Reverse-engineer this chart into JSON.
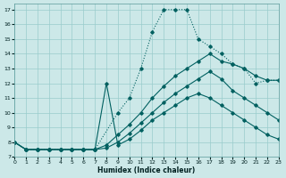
{
  "xlabel": "Humidex (Indice chaleur)",
  "background_color": "#cce8e8",
  "line_color": "#006060",
  "grid_color": "#99cccc",
  "xlim": [
    0,
    23
  ],
  "ylim": [
    7,
    17.4
  ],
  "yticks": [
    7,
    8,
    9,
    10,
    11,
    12,
    13,
    14,
    15,
    16,
    17
  ],
  "xticks": [
    0,
    1,
    2,
    3,
    4,
    5,
    6,
    7,
    8,
    9,
    10,
    11,
    12,
    13,
    14,
    15,
    16,
    17,
    18,
    19,
    20,
    21,
    22,
    23
  ],
  "c1x": [
    0,
    1,
    2,
    3,
    4,
    5,
    6,
    7,
    9,
    10,
    11,
    12,
    13,
    14,
    15,
    16,
    17,
    18,
    19,
    20,
    21,
    22,
    23
  ],
  "c1y": [
    8,
    7.5,
    7.5,
    7.5,
    7.5,
    7.5,
    7.5,
    7.5,
    10,
    11,
    13,
    15.5,
    17,
    17,
    17,
    15,
    14.5,
    14,
    13.3,
    13,
    12,
    12.2,
    12.2
  ],
  "c2x": [
    0,
    1,
    2,
    3,
    4,
    5,
    6,
    7,
    8,
    9,
    10,
    11,
    12,
    13,
    14,
    15,
    16,
    17,
    18,
    19,
    20,
    21,
    22,
    23
  ],
  "c2y": [
    8,
    7.5,
    7.5,
    7.5,
    7.5,
    7.5,
    7.5,
    7.5,
    7.8,
    8.5,
    9.2,
    10.0,
    11.0,
    11.8,
    12.5,
    13.0,
    13.5,
    14.0,
    13.5,
    13.3,
    13.0,
    12.5,
    12.2,
    12.2
  ],
  "c3x": [
    0,
    1,
    2,
    3,
    4,
    5,
    6,
    7,
    8,
    9,
    10,
    11,
    12,
    13,
    14,
    15,
    16,
    17,
    18,
    19,
    20,
    21,
    22,
    23
  ],
  "c3y": [
    8,
    7.5,
    7.5,
    7.5,
    7.5,
    7.5,
    7.5,
    7.5,
    7.6,
    8.0,
    8.6,
    9.3,
    10.0,
    10.7,
    11.3,
    11.8,
    12.3,
    12.8,
    12.3,
    11.5,
    11.0,
    10.5,
    10.0,
    9.5
  ],
  "c4x": [
    0,
    1,
    2,
    3,
    4,
    5,
    6,
    7,
    8,
    9,
    10,
    11,
    12,
    13,
    14,
    15,
    16,
    17,
    18,
    19,
    20,
    21,
    22,
    23
  ],
  "c4y": [
    8,
    7.5,
    7.5,
    7.5,
    7.5,
    7.5,
    7.5,
    7.5,
    12,
    7.8,
    8.2,
    8.8,
    9.5,
    10.0,
    10.5,
    11.0,
    11.3,
    11.0,
    10.5,
    10.0,
    9.5,
    9.0,
    8.5,
    8.2
  ]
}
